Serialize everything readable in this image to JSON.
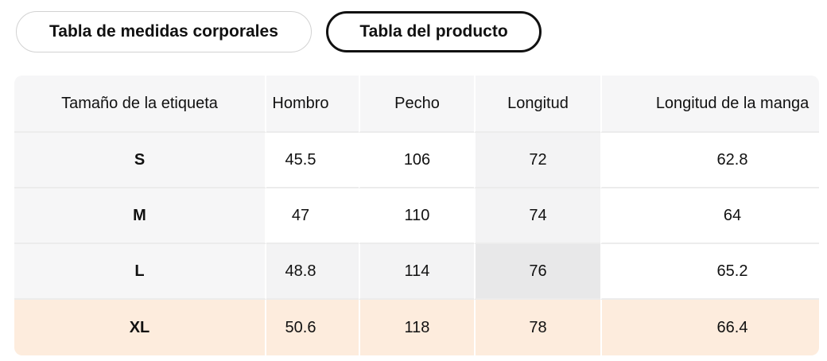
{
  "tabs": [
    {
      "label": "Tabla de medidas corporales",
      "selected": false
    },
    {
      "label": "Tabla del producto",
      "selected": true
    }
  ],
  "table": {
    "headers": [
      "Tamaño de la etiqueta",
      "Hombro",
      "Pecho",
      "Longitud",
      "Longitud de la manga"
    ],
    "rows": [
      {
        "label": "S",
        "values": [
          "45.5",
          "106",
          "72",
          "62.8"
        ]
      },
      {
        "label": "M",
        "values": [
          "47",
          "110",
          "74",
          "64"
        ]
      },
      {
        "label": "L",
        "values": [
          "48.8",
          "114",
          "76",
          "65.2"
        ]
      },
      {
        "label": "XL",
        "values": [
          "50.6",
          "118",
          "78",
          "66.4"
        ]
      }
    ],
    "selected_cell": {
      "row_label": "L",
      "column": "Longitud",
      "row_index": 2,
      "col_index": 3
    },
    "current_size_row": {
      "row_label": "XL",
      "row_index": 3
    }
  },
  "colors": {
    "current_row_bg": "#fdecdd",
    "selected_cell_bg": "#e8e8e9",
    "crosshair_bg": "#f3f3f4",
    "head_bg": "#f6f6f7",
    "row_divider": "#ececec",
    "tab_active_border": "#111111",
    "tab_inactive_border": "#d2d2d2"
  }
}
